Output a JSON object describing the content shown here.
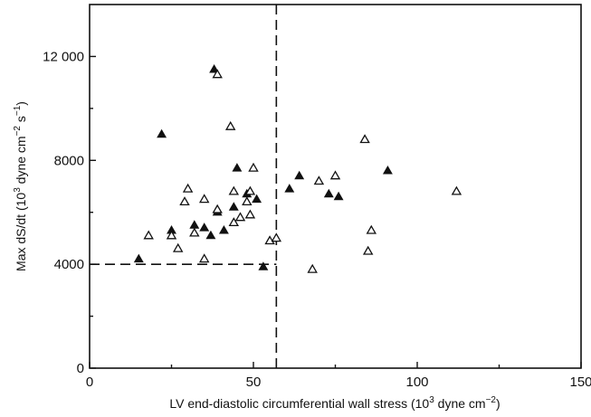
{
  "chart_data": {
    "type": "scatter",
    "title": "",
    "xlabel": {
      "pre": "LV end-diastolic circumferential wall stress (10",
      "sup": "3",
      "post": " dyne cm",
      "sup2": "−2",
      "close": ")"
    },
    "ylabel": {
      "pre": "Max dS/dt (10",
      "sup": "3",
      "mid": " dyne cm",
      "sup2": "−2",
      "mid2": " s",
      "sup3": "−1",
      "close": ")"
    },
    "xlim": [
      0,
      150
    ],
    "ylim": [
      0,
      14000
    ],
    "xticks": [
      0,
      50,
      100,
      150
    ],
    "xtick_labels": [
      "0",
      "50",
      "100",
      "150"
    ],
    "yticks": [
      0,
      4000,
      8000,
      12000
    ],
    "ytick_labels": [
      "0",
      "4000",
      "8000",
      "12 000"
    ],
    "grid": false,
    "reference_lines": [
      {
        "type": "vertical",
        "x": 57,
        "y_from": 0,
        "y_to": 14000
      },
      {
        "type": "horizontal",
        "y": 4000,
        "x_from": 0,
        "x_to": 57
      }
    ],
    "series": [
      {
        "marker": "filled-triangle",
        "points": [
          [
            15,
            4200
          ],
          [
            22,
            9000
          ],
          [
            25,
            5300
          ],
          [
            32,
            5500
          ],
          [
            35,
            5400
          ],
          [
            37,
            5100
          ],
          [
            38,
            11500
          ],
          [
            39,
            6000
          ],
          [
            41,
            5300
          ],
          [
            44,
            6200
          ],
          [
            45,
            7700
          ],
          [
            48,
            6700
          ],
          [
            51,
            6500
          ],
          [
            53,
            3900
          ],
          [
            61,
            6900
          ],
          [
            64,
            7400
          ],
          [
            73,
            6700
          ],
          [
            76,
            6600
          ],
          [
            91,
            7600
          ]
        ]
      },
      {
        "marker": "open-triangle",
        "points": [
          [
            18,
            5100
          ],
          [
            25,
            5100
          ],
          [
            27,
            4600
          ],
          [
            29,
            6400
          ],
          [
            30,
            6900
          ],
          [
            32,
            5200
          ],
          [
            35,
            6500
          ],
          [
            35,
            4200
          ],
          [
            39,
            11300
          ],
          [
            39,
            6100
          ],
          [
            43,
            9300
          ],
          [
            44,
            6800
          ],
          [
            44,
            5600
          ],
          [
            46,
            5800
          ],
          [
            48,
            6400
          ],
          [
            49,
            5900
          ],
          [
            49,
            6800
          ],
          [
            50,
            7700
          ],
          [
            55,
            4900
          ],
          [
            57,
            5000
          ],
          [
            68,
            3800
          ],
          [
            70,
            7200
          ],
          [
            75,
            7400
          ],
          [
            84,
            8800
          ],
          [
            85,
            4500
          ],
          [
            86,
            5300
          ],
          [
            112,
            6800
          ]
        ]
      }
    ]
  }
}
